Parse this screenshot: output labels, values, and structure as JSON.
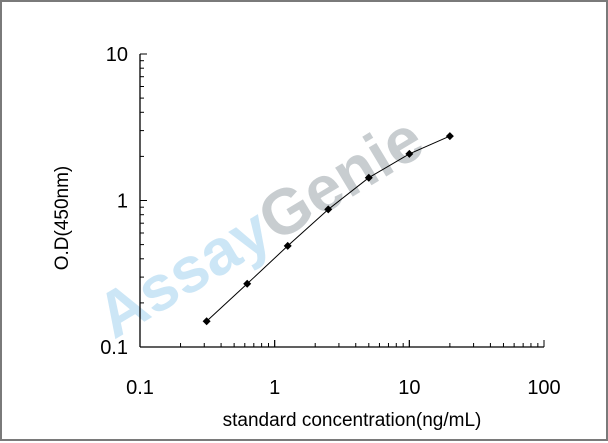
{
  "chart_data": {
    "type": "line",
    "x_scale": "log",
    "y_scale": "log",
    "xlim": [
      0.1,
      100
    ],
    "ylim": [
      0.1,
      10
    ],
    "xticks": [
      "0.1",
      "1",
      "10",
      "100"
    ],
    "yticks": [
      "0.1",
      "1",
      "10"
    ],
    "xlabel": "standard concentration(ng/mL)",
    "ylabel": "O.D(450nm)",
    "grid": false,
    "series": [
      {
        "color": "#000000",
        "marker": "diamond",
        "x": [
          0.3125,
          0.625,
          1.25,
          2.5,
          5,
          10,
          20
        ],
        "y": [
          0.15,
          0.27,
          0.49,
          0.87,
          1.43,
          2.08,
          2.75
        ]
      }
    ]
  },
  "watermark": {
    "part1": "Assay",
    "part2": "Genie"
  }
}
